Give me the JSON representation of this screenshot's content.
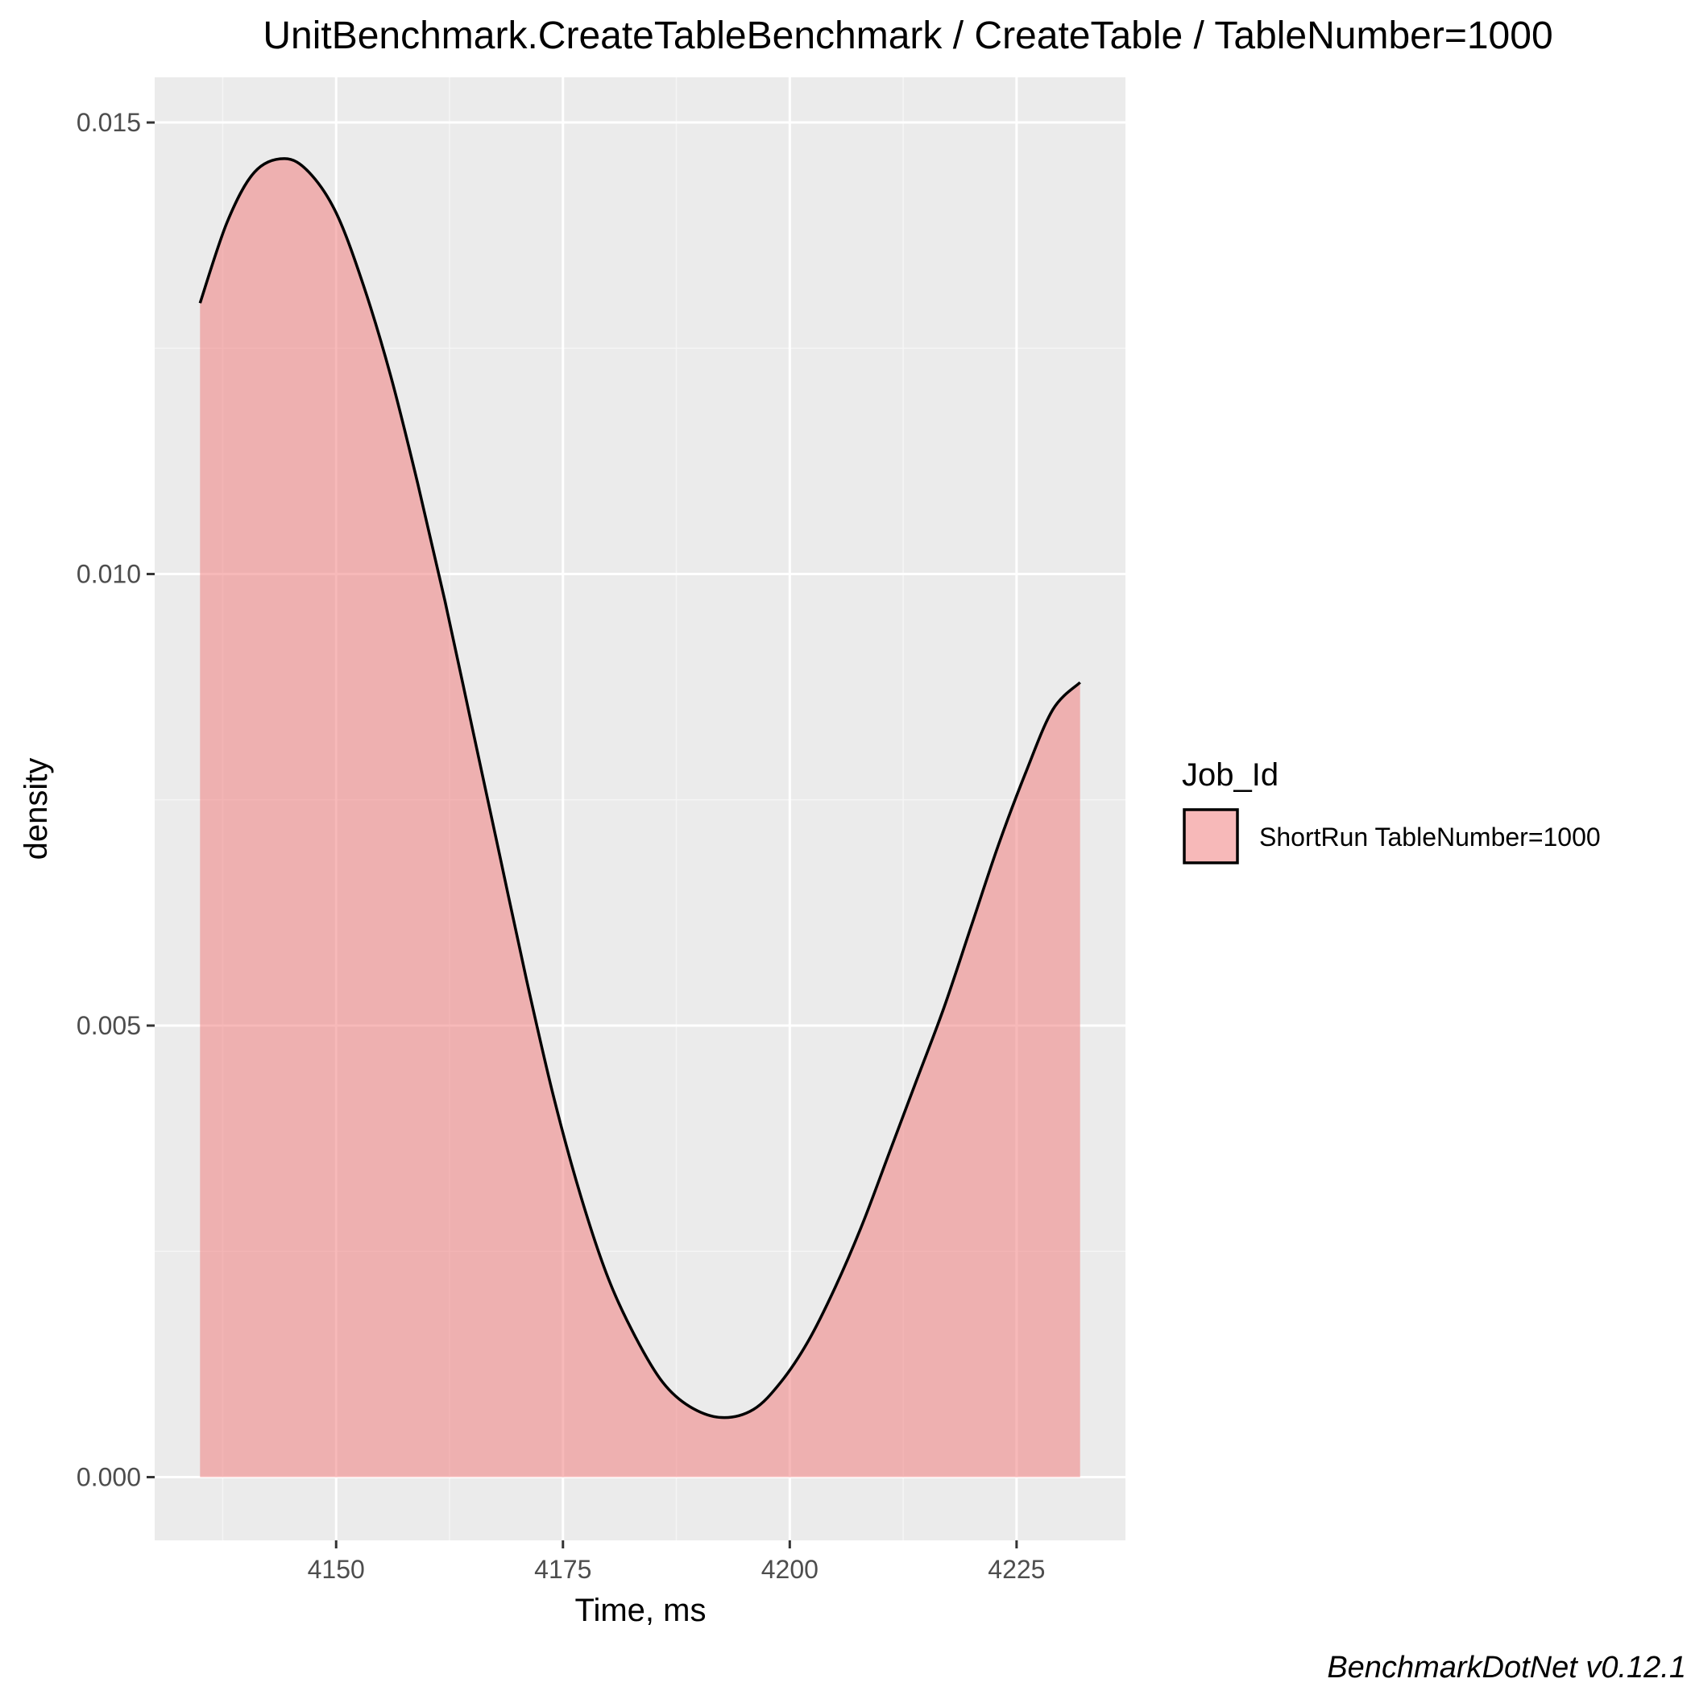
{
  "chart_data": {
    "type": "area",
    "title": "UnitBenchmark.CreateTableBenchmark / CreateTable / TableNumber=1000",
    "xlabel": "Time, ms",
    "ylabel": "density",
    "caption": "BenchmarkDotNet v0.12.1",
    "xlim": [
      4130,
      4237
    ],
    "ylim": [
      -0.0007,
      0.0155
    ],
    "x_ticks": [
      4150,
      4175,
      4200,
      4225
    ],
    "x_tick_labels": [
      "4150",
      "4175",
      "4200",
      "4225"
    ],
    "x_minor_ticks": [
      4137.5,
      4162.5,
      4187.5,
      4212.5
    ],
    "y_ticks": [
      0,
      0.005,
      0.01,
      0.015
    ],
    "y_tick_labels": [
      "0.000",
      "0.005",
      "0.010",
      "0.015"
    ],
    "y_minor_ticks": [
      0.0025,
      0.0075,
      0.0125
    ],
    "grid": true,
    "legend": {
      "title": "Job_Id",
      "position": "right",
      "entries": [
        "ShortRun TableNumber=1000"
      ]
    },
    "series": [
      {
        "name": "ShortRun TableNumber=1000",
        "fill": "#f08080",
        "fill_opacity": 0.55,
        "line": "#000000",
        "x": [
          4135.0,
          4138.0,
          4141.0,
          4144.3,
          4147.0,
          4150.0,
          4153.0,
          4156.0,
          4159.0,
          4162.0,
          4165.0,
          4168.0,
          4171.0,
          4174.0,
          4177.0,
          4180.0,
          4183.0,
          4186.0,
          4189.0,
          4192.5,
          4196.0,
          4199.0,
          4202.0,
          4205.0,
          4208.0,
          4211.0,
          4214.0,
          4217.0,
          4220.0,
          4223.0,
          4226.0,
          4229.0,
          4232.0
        ],
        "y": [
          0.013,
          0.0139,
          0.01445,
          0.0146,
          0.01445,
          0.014,
          0.0132,
          0.0122,
          0.011,
          0.0097,
          0.0083,
          0.0069,
          0.0055,
          0.0042,
          0.0031,
          0.0022,
          0.00155,
          0.00105,
          0.00078,
          0.00066,
          0.00075,
          0.00105,
          0.0015,
          0.0021,
          0.0028,
          0.0036,
          0.0044,
          0.0052,
          0.0061,
          0.007,
          0.0078,
          0.0085,
          0.0088
        ]
      }
    ]
  },
  "colors": {
    "panel_background": "#ebebeb",
    "grid_major": "#ffffff",
    "grid_minor": "#f5f5f5",
    "fill": "#f08080",
    "outline": "#000000",
    "tick_text": "#4d4d4d"
  }
}
